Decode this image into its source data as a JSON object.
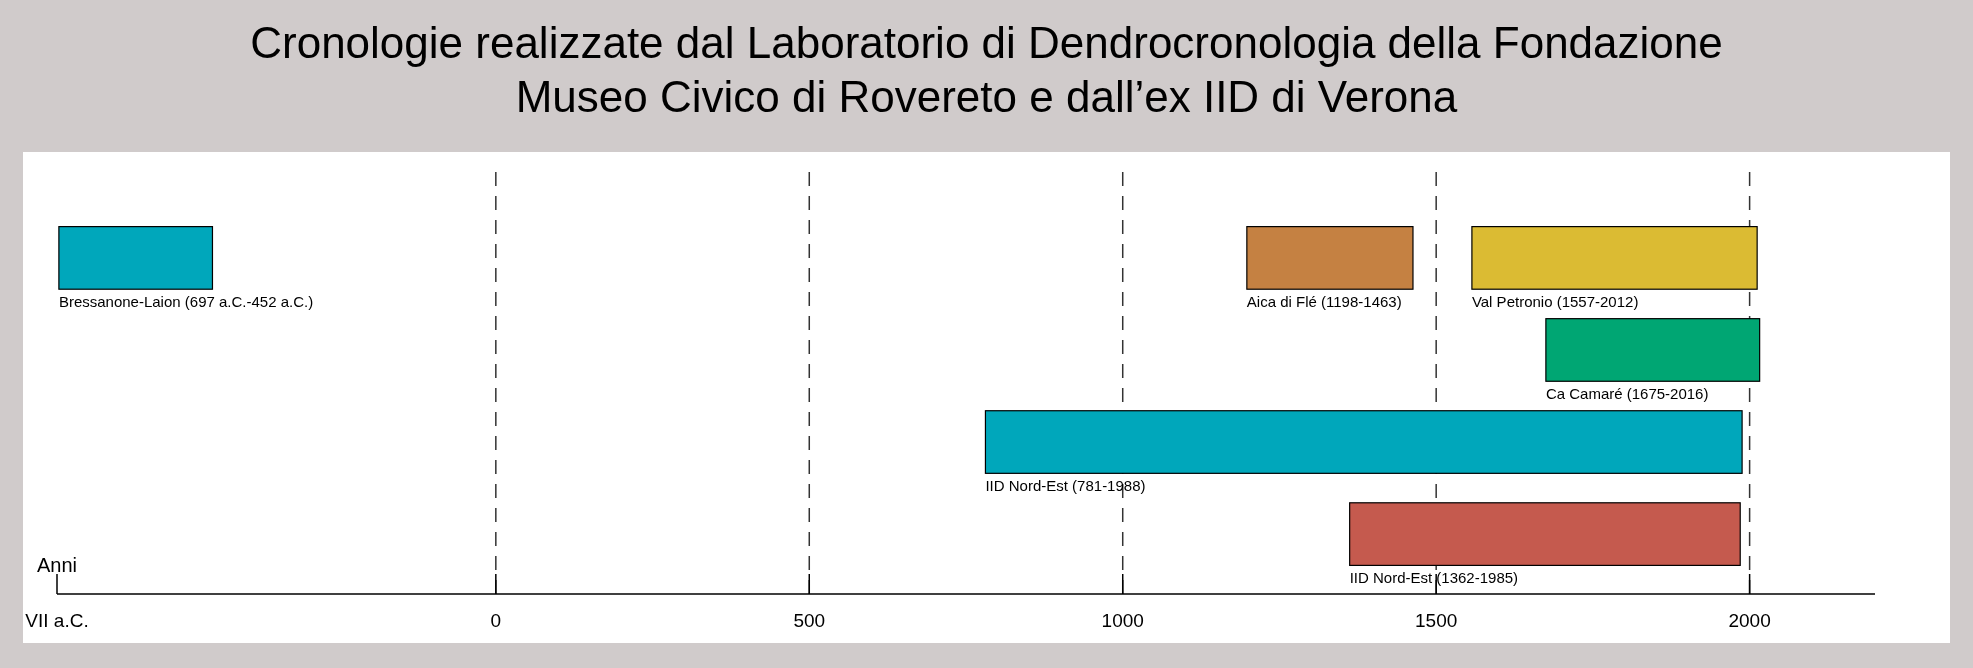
{
  "chart_data": {
    "type": "bar",
    "orientation": "horizontal",
    "title": "Cronologie realizzate dal Laboratorio di Dendrocronologia della Fondazione Museo Civico di Rovereto e dall’ex IID di Verona",
    "xlabel": "Anni",
    "categories": [
      null,
      null,
      null,
      null
    ],
    "series": [
      {
        "values": [
          245,
          341,
          1207,
          623
        ],
        "base": [
          -697,
          1675,
          781,
          1362
        ],
        "colors": [
          "#00a7bb",
          "#00a673",
          "#00a7bb",
          "#c55a4e"
        ],
        "value_labels": [
          "Bressanone-Laion (697 a.C.-452 a.C.)",
          "Ca Camaré (1675-2016)",
          "IID Nord-Est (781-1988)",
          "IID Nord-Est (1362-1985)"
        ]
      },
      {
        "values": [
          265,
          null,
          null,
          null
        ],
        "base": [
          1198,
          null,
          null,
          null
        ],
        "color": "#c58142",
        "value_labels": [
          "Aica di Flé (1198-1463)",
          null,
          null,
          null
        ]
      },
      {
        "values": [
          455,
          null,
          null,
          null
        ],
        "base": [
          1557,
          null,
          null,
          null
        ],
        "color": "#dbbb33",
        "value_labels": [
          "Val Petronio (1557-2012)",
          null,
          null,
          null
        ]
      }
    ],
    "xlim": [
      -700,
      2200
    ],
    "xticks": [
      {
        "value": -700,
        "label": "VII a.C."
      },
      0,
      500,
      1000,
      1500,
      2000
    ],
    "ref_lines": [
      {
        "axis": "x",
        "value": 0,
        "line_style": "dashed"
      },
      {
        "axis": "x",
        "value": 500,
        "line_style": "dashed"
      },
      {
        "axis": "x",
        "value": 1000,
        "line_style": "dashed"
      },
      {
        "axis": "x",
        "value": 1500,
        "line_style": "dashed"
      },
      {
        "axis": "x",
        "value": 2000,
        "line_style": "dashed"
      }
    ],
    "tick_labels": "x"
  }
}
